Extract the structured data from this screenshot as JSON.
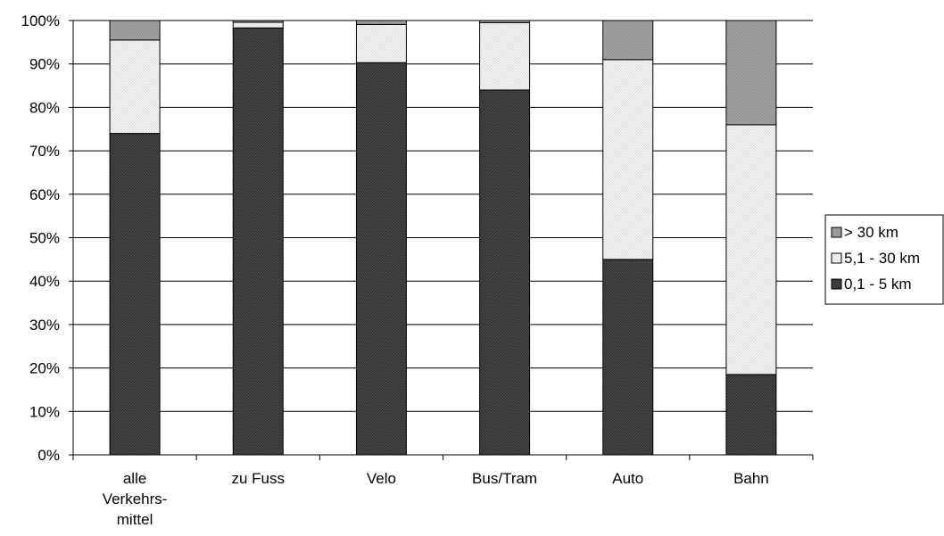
{
  "chart_data": {
    "type": "bar",
    "stacked": true,
    "percent": true,
    "categories": [
      [
        "alle",
        "Verkehrs-",
        "mittel"
      ],
      [
        "zu Fuss"
      ],
      [
        "Velo"
      ],
      [
        "Bus/Tram"
      ],
      [
        "Auto"
      ],
      [
        "Bahn"
      ]
    ],
    "series": [
      {
        "name": "0,1 - 5 km",
        "color": "#3c3c3c",
        "pattern": "dark",
        "values": [
          74,
          98.3,
          90.3,
          84,
          45,
          18.5
        ]
      },
      {
        "name": "5,1 - 30 km",
        "color": "#f2f2f2",
        "pattern": "light",
        "values": [
          21.5,
          1.3,
          8.8,
          15.5,
          46,
          57.5
        ]
      },
      {
        "name": "> 30 km",
        "color": "#a0a0a0",
        "pattern": "medium",
        "values": [
          4.5,
          0.4,
          0.9,
          0.5,
          9,
          24
        ]
      }
    ],
    "ylim": [
      0,
      100
    ],
    "yticks": [
      "0%",
      "10%",
      "20%",
      "30%",
      "40%",
      "50%",
      "60%",
      "70%",
      "80%",
      "90%",
      "100%"
    ],
    "grid": true,
    "legend_position": "right",
    "legend_order": [
      "> 30 km",
      "5,1 - 30 km",
      "0,1 - 5 km"
    ]
  }
}
